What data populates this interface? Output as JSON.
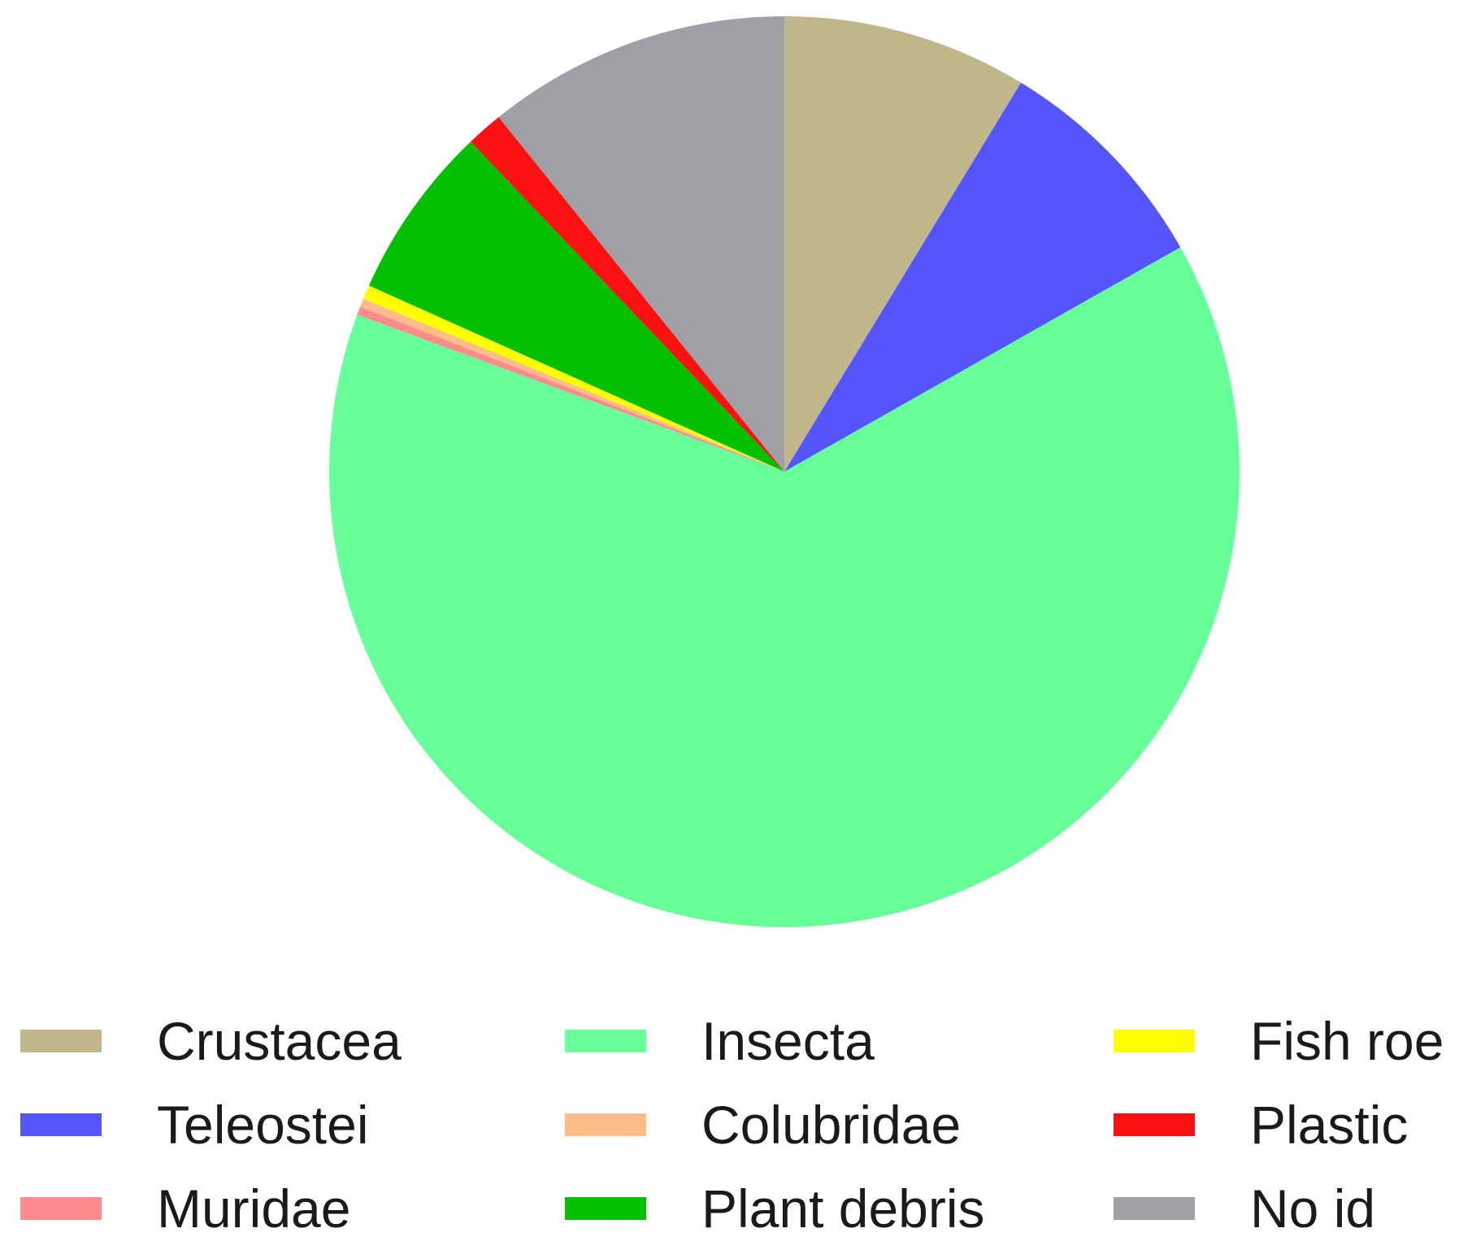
{
  "chart_data": {
    "type": "pie",
    "title": "",
    "start_angle_deg": 0,
    "direction": "clockwise",
    "slices": [
      {
        "label": "Crustacea",
        "value": 8.7,
        "color": "#c2b78a"
      },
      {
        "label": "Teleostei",
        "value": 8.1,
        "color": "#5555ff"
      },
      {
        "label": "Insecta",
        "value": 63.8,
        "color": "#66ff99"
      },
      {
        "label": "Muridae",
        "value": 0.3,
        "color": "#ff8c8c"
      },
      {
        "label": "Colubridae",
        "value": 0.3,
        "color": "#ffbb88"
      },
      {
        "label": "Fish roe",
        "value": 0.5,
        "color": "#ffff00"
      },
      {
        "label": "Plant debris",
        "value": 6.2,
        "color": "#00c000"
      },
      {
        "label": "Plastic",
        "value": 1.3,
        "color": "#ff1010"
      },
      {
        "label": "No id",
        "value": 10.8,
        "color": "#a0a0a4"
      }
    ],
    "legend": {
      "placement": "bottom",
      "columns": [
        [
          "Crustacea",
          "Teleostei",
          "Muridae"
        ],
        [
          "Insecta",
          "Colubridae",
          "Plant debris"
        ],
        [
          "Fish roe",
          "Plastic",
          "No id"
        ]
      ]
    }
  }
}
